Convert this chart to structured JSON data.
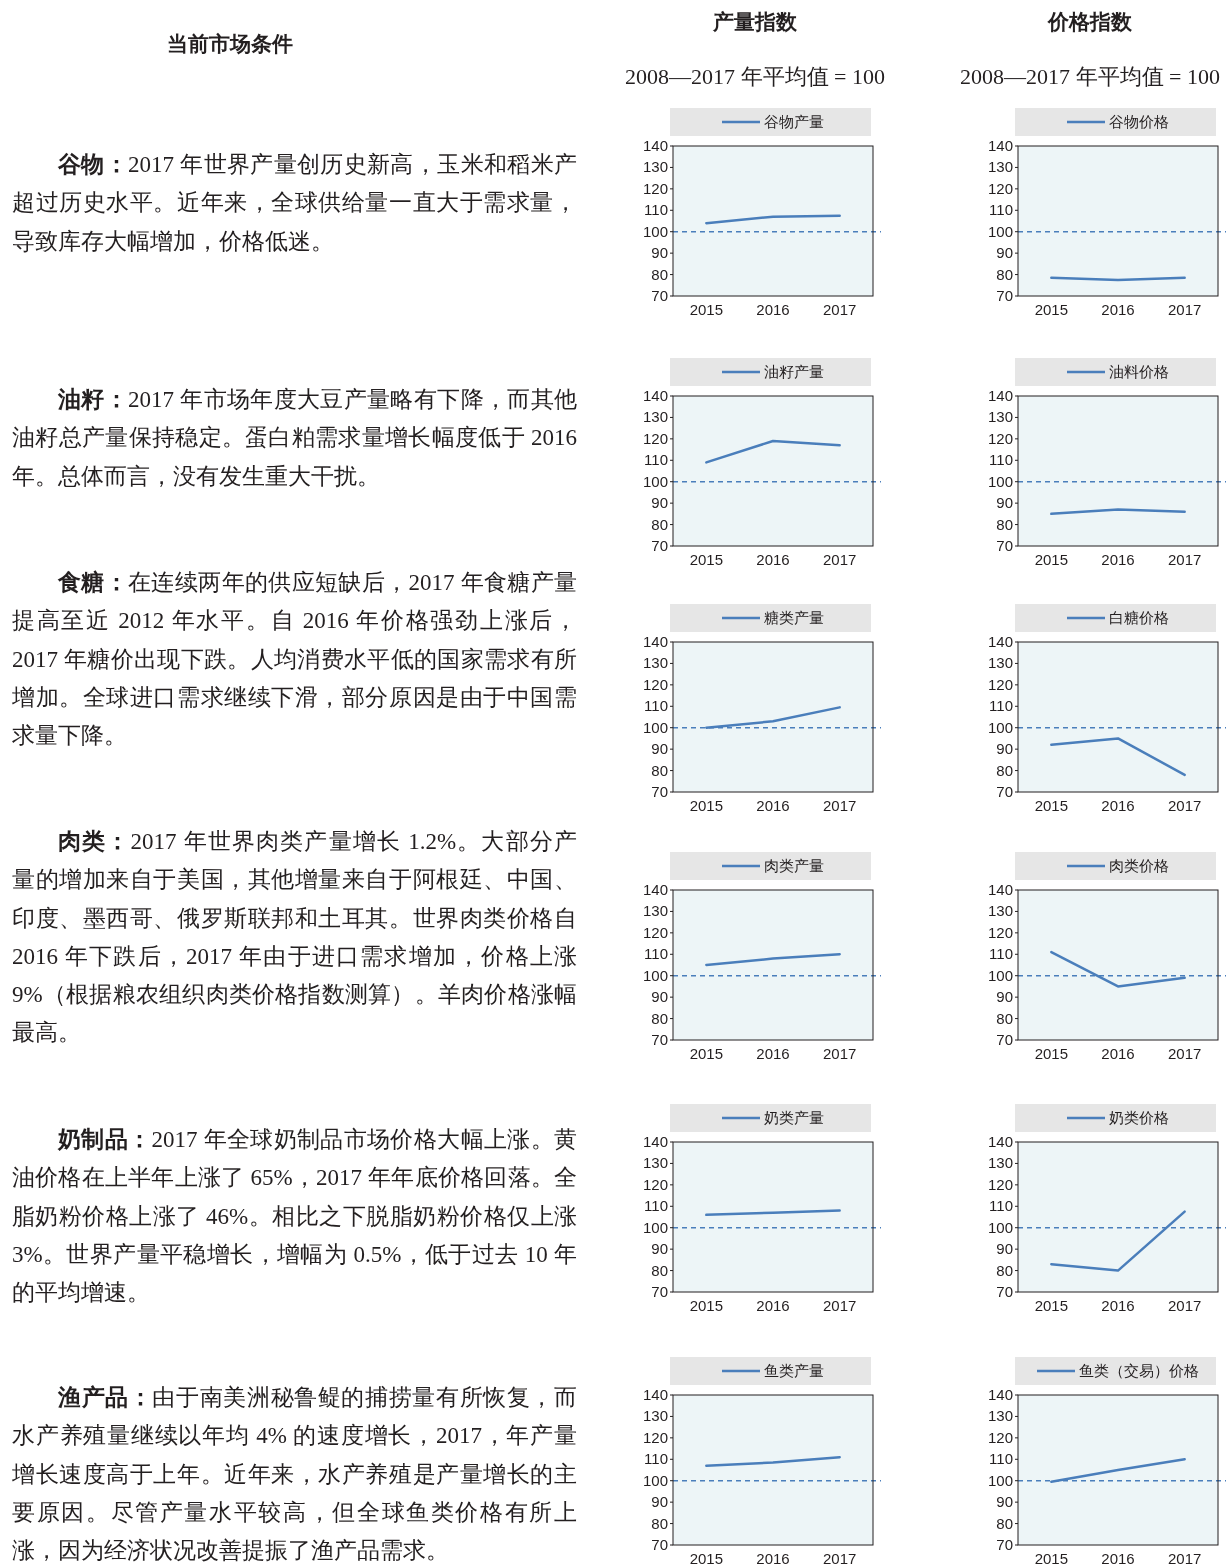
{
  "chart_data": [
    {
      "type": "other",
      "title": "当前市场条件"
    },
    {
      "type": "other",
      "title": "产量指数",
      "subtitle": "2008—2017 年平均值 = 100"
    },
    {
      "type": "other",
      "title": "价格指数",
      "subtitle": "2008—2017 年平均值 = 100"
    },
    {
      "type": "other",
      "title": "谷物：",
      "annotations": [
        "2017 年世界产量创历史新高，玉米和稻米产超过历史水平。近年来，全球供给量一直大于需求量，导致库存大幅增加，价格低迷。"
      ]
    },
    {
      "type": "line",
      "categories": [
        "2015",
        "2016",
        "2017"
      ],
      "series": [
        {
          "name": "谷物产量",
          "color": "#4a7ebb",
          "values": [
            104,
            107,
            107.5
          ]
        }
      ],
      "ylim": [
        70,
        140
      ],
      "yticks": [
        70,
        80,
        90,
        100,
        110,
        120,
        130,
        140
      ],
      "ref_lines": [
        {
          "axis": "y",
          "value": 100,
          "color": "#4a7ebb",
          "line_style": "dashed"
        }
      ],
      "legend": "top",
      "grid": false,
      "marker": "none",
      "line_style": "solid"
    },
    {
      "type": "line",
      "categories": [
        "2015",
        "2016",
        "2017"
      ],
      "series": [
        {
          "name": "谷物价格",
          "color": "#4a7ebb",
          "values": [
            78.5,
            77.5,
            78.5
          ]
        }
      ],
      "ylim": [
        70,
        140
      ],
      "yticks": [
        70,
        80,
        90,
        100,
        110,
        120,
        130,
        140
      ],
      "ref_lines": [
        {
          "axis": "y",
          "value": 100,
          "color": "#4a7ebb",
          "line_style": "dashed"
        }
      ],
      "legend": "top",
      "grid": false,
      "marker": "none",
      "line_style": "solid"
    },
    {
      "type": "other",
      "title": "油籽：",
      "annotations": [
        "2017 年市场年度大豆产量略有下降，而其他油籽总产量保持稳定。蛋白粕需求量增长幅度低于 2016 年。总体而言，没有发生重大干扰。"
      ]
    },
    {
      "type": "line",
      "categories": [
        "2015",
        "2016",
        "2017"
      ],
      "series": [
        {
          "name": "油籽产量",
          "color": "#4a7ebb",
          "values": [
            109,
            119,
            117
          ]
        }
      ],
      "ylim": [
        70,
        140
      ],
      "yticks": [
        70,
        80,
        90,
        100,
        110,
        120,
        130,
        140
      ],
      "ref_lines": [
        {
          "axis": "y",
          "value": 100,
          "color": "#4a7ebb",
          "line_style": "dashed"
        }
      ],
      "legend": "top",
      "grid": false,
      "marker": "none",
      "line_style": "solid"
    },
    {
      "type": "line",
      "categories": [
        "2015",
        "2016",
        "2017"
      ],
      "series": [
        {
          "name": "油料价格",
          "color": "#4a7ebb",
          "values": [
            85,
            87,
            86
          ]
        }
      ],
      "ylim": [
        70,
        140
      ],
      "yticks": [
        70,
        80,
        90,
        100,
        110,
        120,
        130,
        140
      ],
      "ref_lines": [
        {
          "axis": "y",
          "value": 100,
          "color": "#4a7ebb",
          "line_style": "dashed"
        }
      ],
      "legend": "top",
      "grid": false,
      "marker": "none",
      "line_style": "solid"
    },
    {
      "type": "other",
      "title": "食糖：",
      "annotations": [
        "在连续两年的供应短缺后，2017 年食糖产量提高至近 2012 年水平。自 2016 年价格强劲上涨后，2017 年糖价出现下跌。人均消费水平低的国家需求有所增加。全球进口需求继续下滑，部分原因是由于中国需求量下降。"
      ]
    },
    {
      "type": "line",
      "categories": [
        "2015",
        "2016",
        "2017"
      ],
      "series": [
        {
          "name": "糖类产量",
          "color": "#4a7ebb",
          "values": [
            100,
            103,
            109.5
          ]
        }
      ],
      "ylim": [
        70,
        140
      ],
      "yticks": [
        70,
        80,
        90,
        100,
        110,
        120,
        130,
        140
      ],
      "ref_lines": [
        {
          "axis": "y",
          "value": 100,
          "color": "#4a7ebb",
          "line_style": "dashed"
        }
      ],
      "legend": "top",
      "grid": false,
      "marker": "none",
      "line_style": "solid"
    },
    {
      "type": "line",
      "categories": [
        "2015",
        "2016",
        "2017"
      ],
      "series": [
        {
          "name": "白糖价格",
          "color": "#4a7ebb",
          "values": [
            92,
            95,
            78
          ]
        }
      ],
      "ylim": [
        70,
        140
      ],
      "yticks": [
        70,
        80,
        90,
        100,
        110,
        120,
        130,
        140
      ],
      "ref_lines": [
        {
          "axis": "y",
          "value": 100,
          "color": "#4a7ebb",
          "line_style": "dashed"
        }
      ],
      "legend": "top",
      "grid": false,
      "marker": "none",
      "line_style": "solid"
    },
    {
      "type": "other",
      "title": "肉类：",
      "annotations": [
        "2017 年世界肉类产量增长 1.2%。大部分产量的增加来自于美国，其他增量来自于阿根廷、中国、印度、墨西哥、俄罗斯联邦和土耳其。世界肉类价格自 2016 年下跌后，2017 年由于进口需求增加，价格上涨 9%（根据粮农组织肉类价格指数测算）。羊肉价格涨幅最高。"
      ]
    },
    {
      "type": "line",
      "categories": [
        "2015",
        "2016",
        "2017"
      ],
      "series": [
        {
          "name": "肉类产量",
          "color": "#4a7ebb",
          "values": [
            105,
            108,
            110
          ]
        }
      ],
      "ylim": [
        70,
        140
      ],
      "yticks": [
        70,
        80,
        90,
        100,
        110,
        120,
        130,
        140
      ],
      "ref_lines": [
        {
          "axis": "y",
          "value": 100,
          "color": "#4a7ebb",
          "line_style": "dashed"
        }
      ],
      "legend": "top",
      "grid": false,
      "marker": "none",
      "line_style": "solid"
    },
    {
      "type": "line",
      "categories": [
        "2015",
        "2016",
        "2017"
      ],
      "series": [
        {
          "name": "肉类价格",
          "color": "#4a7ebb",
          "values": [
            111,
            95,
            99
          ]
        }
      ],
      "ylim": [
        70,
        140
      ],
      "yticks": [
        70,
        80,
        90,
        100,
        110,
        120,
        130,
        140
      ],
      "ref_lines": [
        {
          "axis": "y",
          "value": 100,
          "color": "#4a7ebb",
          "line_style": "dashed"
        }
      ],
      "legend": "top",
      "grid": false,
      "marker": "none",
      "line_style": "solid"
    },
    {
      "type": "other",
      "title": "奶制品：",
      "annotations": [
        "2017 年全球奶制品市场价格大幅上涨。黄油价格在上半年上涨了 65%，2017 年年底价格回落。全脂奶粉价格上涨了 46%。相比之下脱脂奶粉价格仅上涨 3%。世界产量平稳增长，增幅为 0.5%，低于过去 10 年的平均增速。"
      ]
    },
    {
      "type": "line",
      "categories": [
        "2015",
        "2016",
        "2017"
      ],
      "series": [
        {
          "name": "奶类产量",
          "color": "#4a7ebb",
          "values": [
            106,
            107,
            108
          ]
        }
      ],
      "ylim": [
        70,
        140
      ],
      "yticks": [
        70,
        80,
        90,
        100,
        110,
        120,
        130,
        140
      ],
      "ref_lines": [
        {
          "axis": "y",
          "value": 100,
          "color": "#4a7ebb",
          "line_style": "dashed"
        }
      ],
      "legend": "top",
      "grid": false,
      "marker": "none",
      "line_style": "solid"
    },
    {
      "type": "line",
      "categories": [
        "2015",
        "2016",
        "2017"
      ],
      "series": [
        {
          "name": "奶类价格",
          "color": "#4a7ebb",
          "values": [
            83,
            80,
            107.5
          ]
        }
      ],
      "ylim": [
        70,
        140
      ],
      "yticks": [
        70,
        80,
        90,
        100,
        110,
        120,
        130,
        140
      ],
      "ref_lines": [
        {
          "axis": "y",
          "value": 100,
          "color": "#4a7ebb",
          "line_style": "dashed"
        }
      ],
      "legend": "top",
      "grid": false,
      "marker": "none",
      "line_style": "solid"
    },
    {
      "type": "other",
      "title": "渔产品：",
      "annotations": [
        "由于南美洲秘鲁鳀的捕捞量有所恢复，而水产养殖量继续以年均 4% 的速度增长，2017，年产量增长速度高于上年。近年来，水产养殖是产量增长的主要原因。尽管产量水平较高，但全球鱼类价格有所上涨，因为经济状况改善提振了渔产品需求。"
      ]
    },
    {
      "type": "line",
      "categories": [
        "2015",
        "2016",
        "2017"
      ],
      "series": [
        {
          "name": "鱼类产量",
          "color": "#4a7ebb",
          "values": [
            107,
            108.5,
            111
          ]
        }
      ],
      "ylim": [
        70,
        140
      ],
      "yticks": [
        70,
        80,
        90,
        100,
        110,
        120,
        130,
        140
      ],
      "ref_lines": [
        {
          "axis": "y",
          "value": 100,
          "color": "#4a7ebb",
          "line_style": "dashed"
        }
      ],
      "legend": "top",
      "grid": false,
      "marker": "none",
      "line_style": "solid"
    },
    {
      "type": "line",
      "categories": [
        "2015",
        "2016",
        "2017"
      ],
      "series": [
        {
          "name": "鱼类（交易）价格",
          "color": "#4a7ebb",
          "values": [
            99.5,
            105,
            110
          ]
        }
      ],
      "ylim": [
        70,
        140
      ],
      "yticks": [
        70,
        80,
        90,
        100,
        110,
        120,
        130,
        140
      ],
      "ref_lines": [
        {
          "axis": "y",
          "value": 100,
          "color": "#4a7ebb",
          "line_style": "dashed"
        }
      ],
      "legend": "top",
      "grid": false,
      "marker": "none",
      "line_style": "solid"
    }
  ]
}
